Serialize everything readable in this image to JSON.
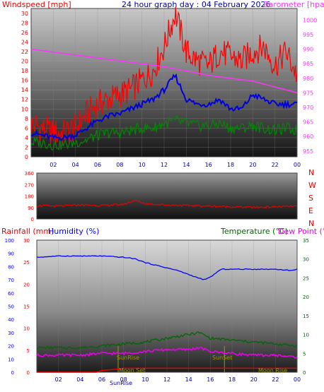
{
  "colors": {
    "wind": "#ff0000",
    "gust_avg": "#0000dd",
    "direction": "#ee0000",
    "baro": "#ff33ff",
    "low_wind": "#008800",
    "rain": "#ee0000",
    "humidity": "#0000ff",
    "temperature": "#006600",
    "dewpoint": "#ee00ee",
    "sun_moon": "#999900",
    "axis_label": "#ee0000",
    "title": "#0000aa",
    "compass": "#ee0000"
  },
  "chart_data": [
    {
      "type": "line",
      "title": "24 hour graph day : 04 February 2026",
      "left_axis_label": "Windspeed [mph]",
      "right_axis_label": "Barometer [hpa]",
      "left_ylim": [
        0,
        31
      ],
      "left_ticks": [
        0,
        2,
        4,
        6,
        8,
        10,
        12,
        14,
        16,
        18,
        20,
        22,
        24,
        26,
        28,
        30
      ],
      "right_ylim": [
        953,
        1004
      ],
      "right_ticks": [
        955,
        960,
        965,
        970,
        975,
        980,
        985,
        990,
        995,
        1000
      ],
      "x_tick_labels": [
        "02",
        "04",
        "06",
        "08",
        "10",
        "12",
        "14",
        "16",
        "18",
        "20",
        "22",
        "00"
      ],
      "series": [
        {
          "name": "",
          "color_key": "baro",
          "axis": "right",
          "x": [
            0,
            4,
            8,
            12,
            16,
            20,
            24
          ],
          "values": [
            990,
            988,
            986,
            984,
            981,
            979,
            975
          ]
        },
        {
          "name": "",
          "color_key": "wind",
          "axis": "left",
          "x": [
            0,
            1,
            2,
            3,
            4,
            5,
            6,
            7,
            8,
            9,
            10,
            11,
            12,
            13,
            14,
            15,
            16,
            17,
            18,
            19,
            20,
            21,
            22,
            23,
            24
          ],
          "values": [
            7,
            6,
            5,
            5,
            6,
            9,
            11,
            12,
            13,
            14,
            16,
            18,
            23,
            30,
            22,
            20,
            19,
            22,
            21,
            20,
            22,
            23,
            19,
            22,
            17
          ]
        },
        {
          "name": "",
          "color_key": "gust_avg",
          "axis": "left",
          "x": [
            0,
            1,
            2,
            3,
            4,
            5,
            6,
            7,
            8,
            9,
            10,
            11,
            12,
            13,
            14,
            15,
            16,
            17,
            18,
            19,
            20,
            21,
            22,
            23,
            24
          ],
          "values": [
            5,
            4.5,
            4,
            4,
            4.5,
            6,
            7.5,
            8.5,
            9,
            10,
            11,
            12,
            14,
            17,
            12,
            11,
            11,
            12,
            10,
            10,
            13,
            12,
            11,
            11,
            11
          ]
        },
        {
          "name": "",
          "color_key": "low_wind",
          "axis": "left",
          "x": [
            0,
            1,
            2,
            3,
            4,
            5,
            6,
            7,
            8,
            9,
            10,
            11,
            12,
            13,
            14,
            15,
            16,
            17,
            18,
            19,
            20,
            21,
            22,
            23,
            24
          ],
          "values": [
            3,
            3,
            2.5,
            2.5,
            3,
            3.5,
            4.5,
            5,
            5,
            5.5,
            6,
            6,
            7,
            7.5,
            7,
            6.5,
            6.5,
            7,
            6,
            6,
            6.5,
            6,
            5.5,
            6,
            5.5
          ]
        }
      ]
    },
    {
      "type": "line",
      "title": "",
      "ylim": [
        0,
        360
      ],
      "y_ticks": [
        0,
        90,
        180,
        270,
        360
      ],
      "compass_labels": [
        "N",
        "W",
        "S",
        "E",
        "N"
      ],
      "series": [
        {
          "name": "",
          "color_key": "direction",
          "x": [
            0,
            2,
            4,
            6,
            8,
            9,
            10,
            12,
            14,
            16,
            18,
            20,
            22,
            24
          ],
          "values": [
            105,
            100,
            110,
            105,
            115,
            145,
            120,
            110,
            105,
            100,
            95,
            90,
            95,
            100
          ]
        }
      ]
    },
    {
      "type": "line",
      "left_axis_label_rain": "Rainfall (mm)",
      "left_axis_label_hum": "Humidity (%)",
      "right_axis_label_temp": "Temperature (°C)",
      "right_axis_label_dew": "Dew Point (°C",
      "humidity_ylim": [
        0,
        100
      ],
      "humidity_ticks": [
        0,
        10,
        20,
        30,
        40,
        50,
        60,
        70,
        80,
        90,
        100
      ],
      "rain_ylim": [
        0,
        30
      ],
      "rain_ticks": [
        0,
        5,
        10,
        15,
        20,
        25,
        30
      ],
      "temp_ylim": [
        0,
        35
      ],
      "temp_ticks": [
        0,
        5,
        10,
        15,
        20,
        25,
        30,
        35
      ],
      "x_tick_labels": [
        "02",
        "04",
        "06",
        "08",
        "10",
        "12",
        "14",
        "16",
        "18",
        "20",
        "22",
        "00"
      ],
      "annotations": [
        "SunRise",
        "SunSet",
        "Moon Set",
        "Moon Rise",
        "SunRise"
      ],
      "series": [
        {
          "name": "",
          "color_key": "humidity",
          "axis": "humidity",
          "x": [
            0,
            2,
            4,
            6,
            8,
            9,
            10,
            11,
            12,
            13,
            14,
            15,
            15.5,
            16,
            17,
            18,
            20,
            22,
            23.5,
            24
          ],
          "values": [
            87,
            88,
            88,
            88,
            87,
            86,
            83,
            81,
            79,
            77,
            74,
            71,
            70,
            72,
            78,
            78,
            78,
            78,
            77,
            78
          ]
        },
        {
          "name": "",
          "color_key": "temperature",
          "axis": "temp",
          "x": [
            0,
            2,
            4,
            6,
            8,
            10,
            12,
            14,
            15,
            16,
            18,
            20,
            22,
            24
          ],
          "values": [
            6.5,
            6.5,
            6.5,
            7,
            7.5,
            8,
            9,
            10,
            10.5,
            9,
            8.5,
            8,
            7.5,
            7
          ]
        },
        {
          "name": "",
          "color_key": "dewpoint",
          "axis": "temp",
          "x": [
            0,
            2,
            4,
            6,
            8,
            10,
            12,
            14,
            15,
            16,
            18,
            20,
            22,
            24
          ],
          "values": [
            4.5,
            4.5,
            4.5,
            5,
            5,
            5.5,
            6,
            6,
            6.5,
            5.5,
            5,
            4.5,
            4.5,
            4
          ]
        },
        {
          "name": "",
          "color_key": "rain",
          "axis": "rain",
          "x": [
            0,
            5.5,
            6,
            7,
            8,
            24
          ],
          "values": [
            0,
            0,
            0.4,
            0.6,
            0.9,
            0.9
          ]
        }
      ]
    }
  ]
}
